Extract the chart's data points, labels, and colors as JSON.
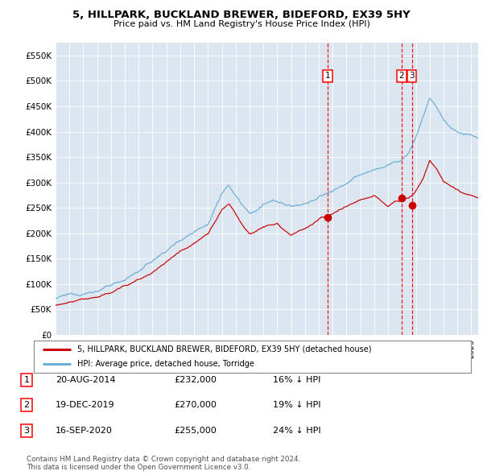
{
  "title": "5, HILLPARK, BUCKLAND BREWER, BIDEFORD, EX39 5HY",
  "subtitle": "Price paid vs. HM Land Registry's House Price Index (HPI)",
  "hpi_color": "#6baed6",
  "price_color": "#cc0000",
  "background_color": "#dce6f1",
  "plot_bg": "#ffffff",
  "ylim": [
    0,
    575000
  ],
  "yticks": [
    0,
    50000,
    100000,
    150000,
    200000,
    250000,
    300000,
    350000,
    400000,
    450000,
    500000,
    550000
  ],
  "ytick_labels": [
    "£0",
    "£50K",
    "£100K",
    "£150K",
    "£200K",
    "£250K",
    "£300K",
    "£350K",
    "£400K",
    "£450K",
    "£500K",
    "£550K"
  ],
  "xmin": 1995.0,
  "xmax": 2025.5,
  "sale_dates_year": [
    2014.639,
    2019.964,
    2020.711
  ],
  "sale_prices": [
    232000,
    270000,
    255000
  ],
  "sale_labels": [
    "1",
    "2",
    "3"
  ],
  "legend_line1": "5, HILLPARK, BUCKLAND BREWER, BIDEFORD, EX39 5HY (detached house)",
  "legend_line2": "HPI: Average price, detached house, Torridge",
  "table_rows": [
    {
      "num": "1",
      "date": "20-AUG-2014",
      "price": "£232,000",
      "hpi": "16% ↓ HPI"
    },
    {
      "num": "2",
      "date": "19-DEC-2019",
      "price": "£270,000",
      "hpi": "19% ↓ HPI"
    },
    {
      "num": "3",
      "date": "16-SEP-2020",
      "price": "£255,000",
      "hpi": "24% ↓ HPI"
    }
  ],
  "footnote": "Contains HM Land Registry data © Crown copyright and database right 2024.\nThis data is licensed under the Open Government Licence v3.0."
}
